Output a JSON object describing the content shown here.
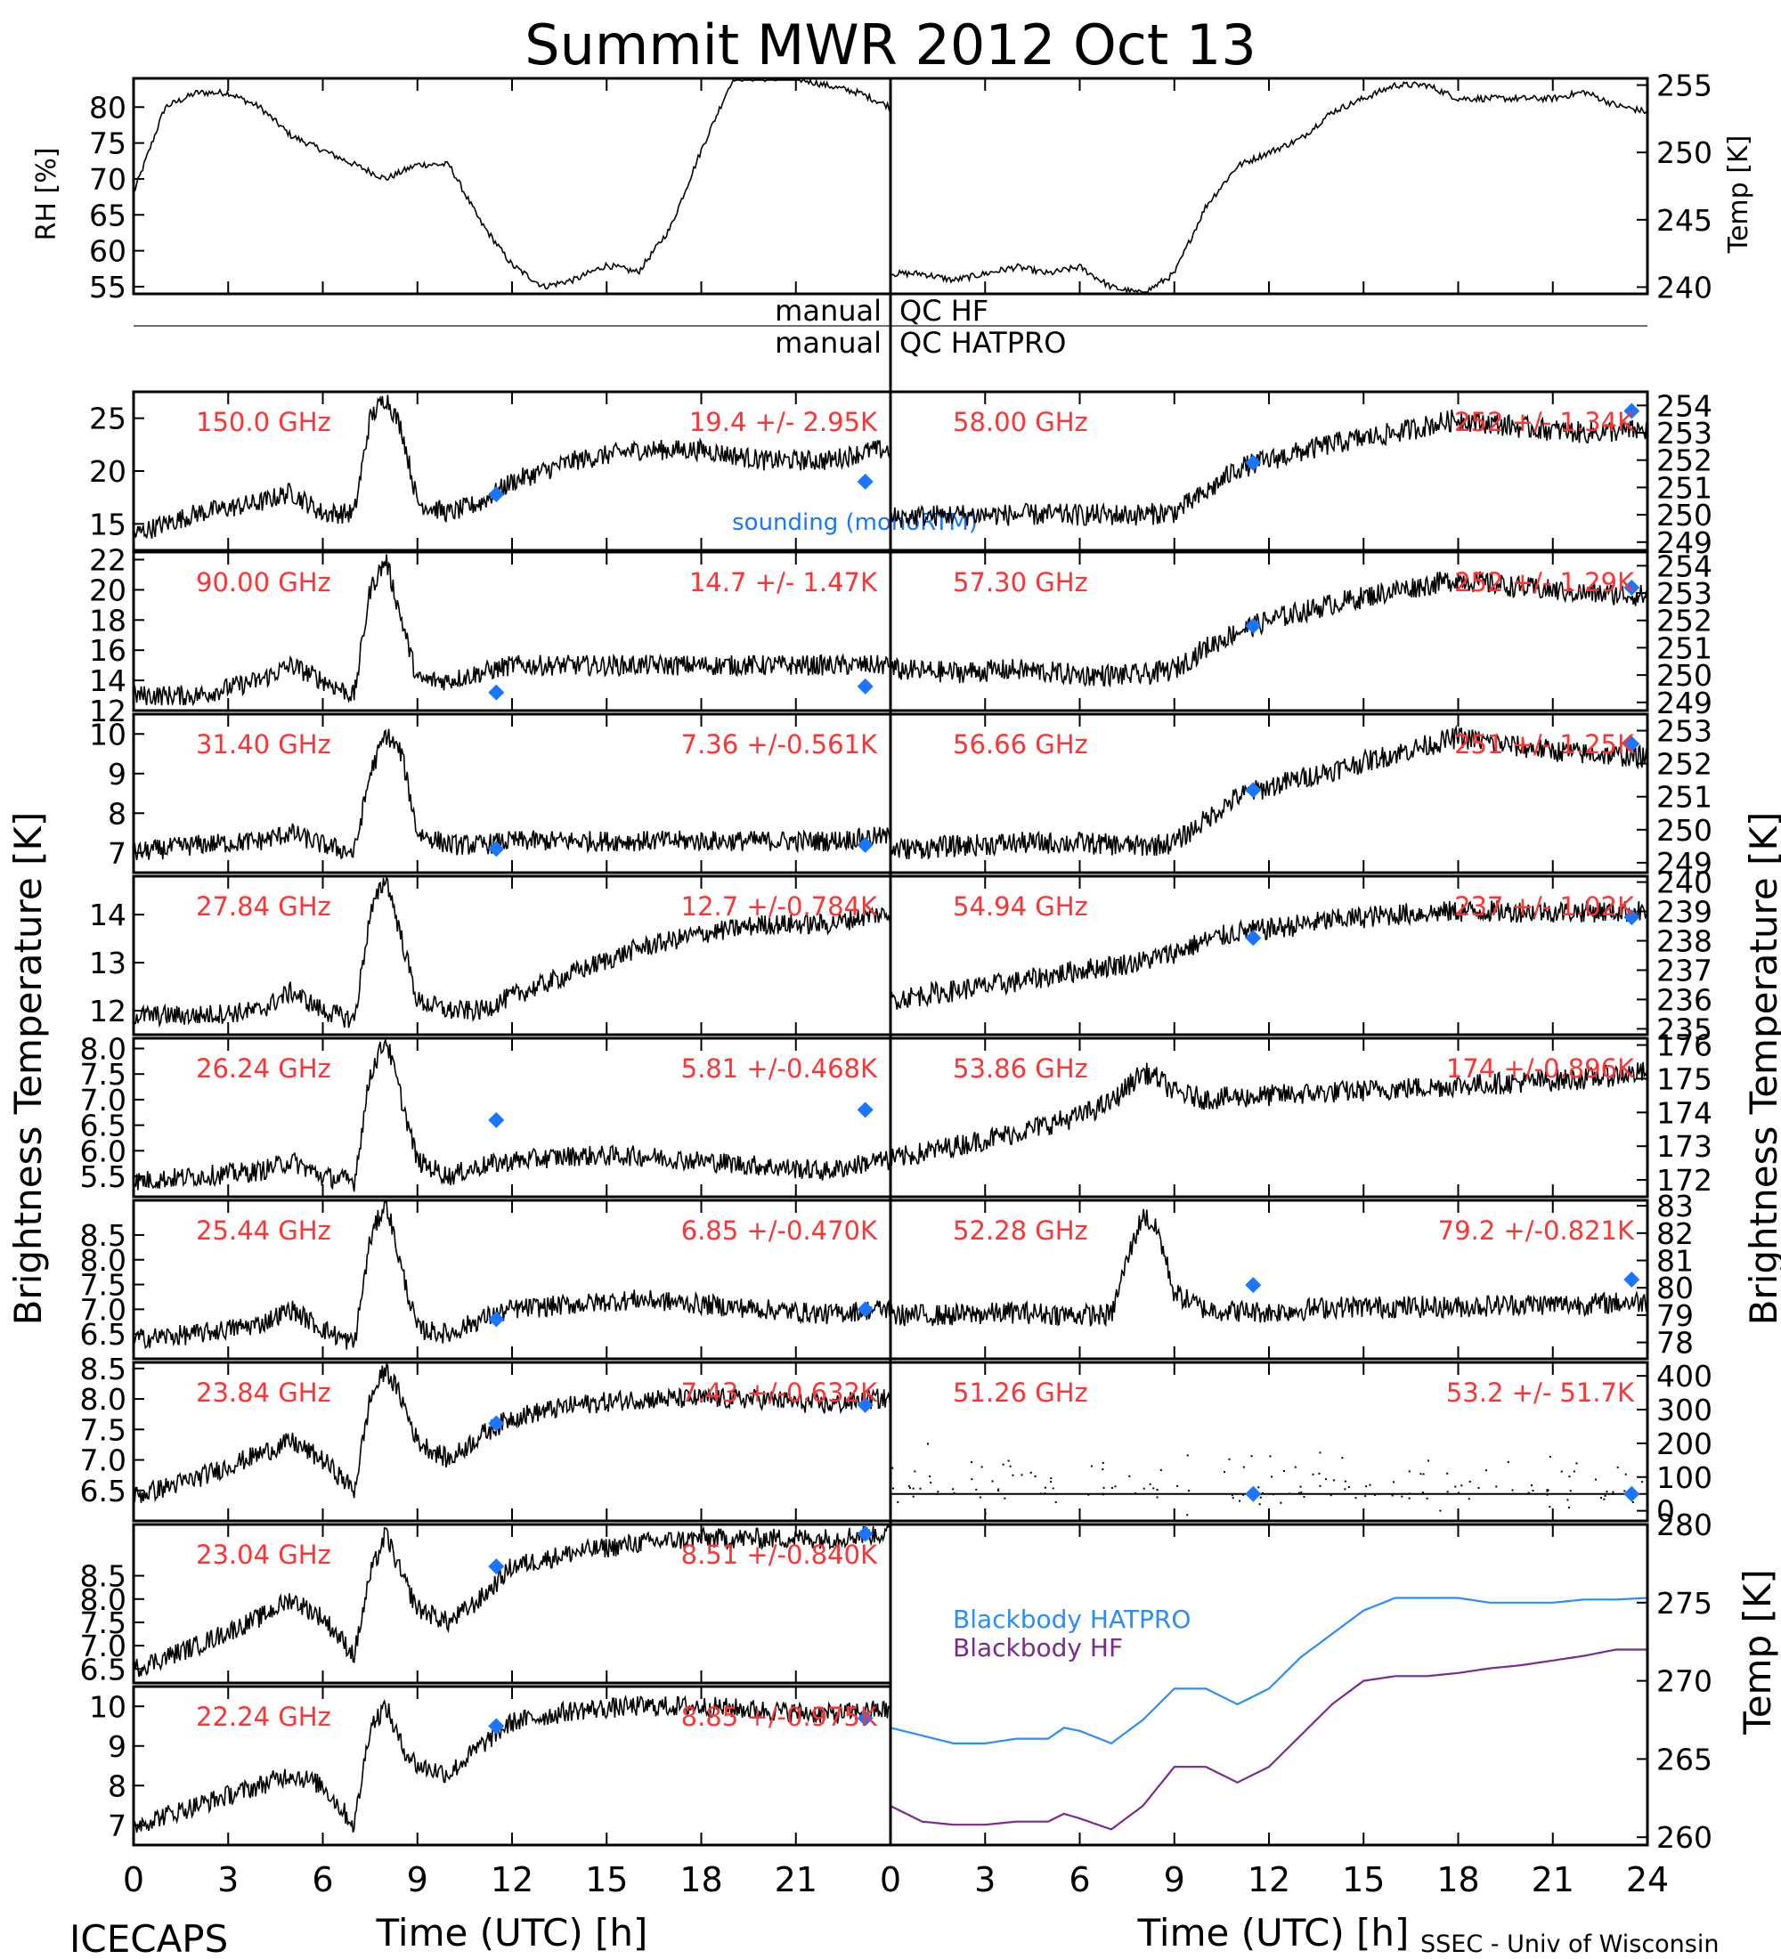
{
  "title": "Summit MWR 2012 Oct 13",
  "footer": {
    "left": "ICECAPS",
    "right": "SSEC - Univ of Wisconsin"
  },
  "axis_labels": {
    "x": "Time (UTC) [h]",
    "left_y": "Brightness Temperature [K]",
    "right_y": "Brightness Temperature [K]",
    "rh": "RH [%]",
    "temp": "Temp [K]",
    "bb_temp": "Temp [K]"
  },
  "qc": {
    "left": "manual",
    "right_top": "QC HF",
    "left2": "manual",
    "right_bottom": "QC HATPRO"
  },
  "sounding_label": "sounding (monoRTM)",
  "colors": {
    "text_red": "#ff3333",
    "marker_blue": "#1a75ff",
    "bb_hatpro": "#2a8cff",
    "bb_hf": "#7b2a8e",
    "trace": "#000000"
  },
  "x_ticks": [
    "0",
    "3",
    "6",
    "9",
    "12",
    "15",
    "18",
    "21",
    "0",
    "3",
    "6",
    "9",
    "12",
    "15",
    "18",
    "21",
    "24"
  ],
  "chart_data": [
    {
      "type": "line",
      "id": "rh",
      "ylabel": "RH [%]",
      "ylim": [
        54,
        84
      ],
      "yticks": [
        "55",
        "60",
        "65",
        "70",
        "75",
        "80"
      ],
      "x": [
        0,
        1,
        2,
        3,
        4,
        5,
        6,
        7,
        8,
        9,
        10,
        11,
        12,
        13,
        14,
        15,
        16,
        17,
        18,
        19,
        20,
        21,
        22,
        23,
        24
      ],
      "values": [
        68,
        80,
        82,
        82,
        80,
        76,
        74,
        72,
        70,
        72,
        72,
        64,
        58,
        55,
        56,
        58,
        57,
        63,
        74,
        84,
        84,
        84,
        83,
        82,
        80
      ]
    },
    {
      "type": "line",
      "id": "temp",
      "ylabel": "Temp [K]",
      "ylim": [
        239.5,
        255.5
      ],
      "yticks": [
        "240",
        "245",
        "250",
        "255"
      ],
      "x": [
        0,
        1,
        2,
        3,
        4,
        5,
        6,
        7,
        8,
        9,
        10,
        11,
        12,
        13,
        14,
        15,
        16,
        17,
        18,
        19,
        20,
        21,
        22,
        23,
        24
      ],
      "values": [
        241,
        241,
        240.5,
        241,
        241.5,
        241,
        241.5,
        240,
        239.5,
        241,
        246,
        249,
        250,
        251,
        253,
        254,
        255,
        255,
        254,
        254,
        254,
        254,
        254.5,
        253.5,
        253
      ]
    },
    {
      "type": "scatter",
      "id": "ch150",
      "label": "150.0 GHz",
      "stat": "19.4 +/- 2.95K",
      "ylim": [
        12.5,
        27.5
      ],
      "yticks": [
        "15",
        "20",
        "25"
      ],
      "x": [
        0,
        2,
        4,
        5,
        6,
        7,
        7.5,
        8,
        8.5,
        9,
        10,
        11,
        12,
        14,
        16,
        18,
        20,
        22,
        23.5
      ],
      "values": [
        14,
        16,
        17,
        18,
        16,
        16,
        25,
        27,
        24,
        17,
        16,
        17,
        19,
        21,
        22,
        22,
        21,
        21,
        22
      ],
      "sounding": [
        [
          11.5,
          17.8
        ],
        [
          23.2,
          19.0
        ]
      ]
    },
    {
      "type": "scatter",
      "id": "ch90",
      "label": "90.00 GHz",
      "stat": "14.7 +/- 1.47K",
      "ylim": [
        12,
        22.5
      ],
      "yticks": [
        "12",
        "14",
        "16",
        "18",
        "20",
        "22"
      ],
      "x": [
        0,
        2,
        4,
        5,
        6,
        7,
        7.5,
        8,
        8.5,
        9,
        10,
        11,
        12,
        14,
        16,
        18,
        20,
        22,
        23.5
      ],
      "values": [
        13,
        13,
        14,
        15,
        14,
        13,
        20,
        22,
        18,
        14,
        14,
        14.5,
        15,
        15,
        15,
        15,
        15,
        15,
        15
      ],
      "sounding": [
        [
          11.5,
          13.2
        ],
        [
          23.2,
          13.6
        ]
      ]
    },
    {
      "type": "scatter",
      "id": "ch31",
      "label": "31.40 GHz",
      "stat": "7.36 +/-0.561K",
      "ylim": [
        6.5,
        10.5
      ],
      "yticks": [
        "7",
        "8",
        "9",
        "10"
      ],
      "x": [
        0,
        2,
        4,
        5,
        6,
        7,
        7.5,
        8,
        8.5,
        9,
        10,
        11,
        12,
        14,
        16,
        18,
        20,
        22,
        23.5
      ],
      "values": [
        7,
        7.2,
        7.3,
        7.5,
        7.2,
        7,
        9,
        10,
        9.5,
        7.5,
        7.2,
        7.2,
        7.3,
        7.3,
        7.3,
        7.3,
        7.3,
        7.3,
        7.4
      ],
      "sounding": [
        [
          11.5,
          7.1
        ],
        [
          23.2,
          7.2
        ]
      ]
    },
    {
      "type": "scatter",
      "id": "ch27",
      "label": "27.84 GHz",
      "stat": "12.7 +/-0.784K",
      "ylim": [
        11.5,
        14.8
      ],
      "yticks": [
        "12",
        "13",
        "14"
      ],
      "x": [
        0,
        2,
        4,
        5,
        6,
        7,
        7.5,
        8,
        8.5,
        9,
        10,
        11,
        12,
        14,
        16,
        18,
        20,
        22,
        23.5
      ],
      "values": [
        11.9,
        11.9,
        12,
        12.4,
        12,
        11.8,
        14,
        14.8,
        13.5,
        12.2,
        12,
        12,
        12.3,
        12.8,
        13.3,
        13.6,
        13.8,
        13.8,
        14
      ],
      "sounding": []
    },
    {
      "type": "scatter",
      "id": "ch26",
      "label": "26.24 GHz",
      "stat": "5.81 +/-0.468K",
      "ylim": [
        5.1,
        8.2
      ],
      "yticks": [
        "8.0",
        "7.5",
        "7.0",
        "6.5",
        "6.0",
        "5.5"
      ],
      "x": [
        0,
        2,
        4,
        5,
        6,
        7,
        7.5,
        8,
        8.5,
        9,
        10,
        11,
        12,
        14,
        16,
        18,
        20,
        22,
        23.5
      ],
      "values": [
        5.4,
        5.5,
        5.6,
        5.8,
        5.5,
        5.4,
        7.5,
        8.2,
        7,
        5.8,
        5.5,
        5.7,
        5.8,
        5.9,
        5.9,
        5.8,
        5.7,
        5.6,
        5.8
      ],
      "sounding": [
        [
          11.5,
          6.6
        ],
        [
          23.2,
          6.8
        ]
      ]
    },
    {
      "type": "scatter",
      "id": "ch25",
      "label": "25.44 GHz",
      "stat": "6.85 +/-0.470K",
      "ylim": [
        6.0,
        9.2
      ],
      "yticks": [
        "8.5",
        "8.0",
        "7.5",
        "7.0",
        "6.5"
      ],
      "x": [
        0,
        2,
        4,
        5,
        6,
        7,
        7.5,
        8,
        8.5,
        9,
        10,
        11,
        12,
        14,
        16,
        18,
        20,
        22,
        23.5
      ],
      "values": [
        6.4,
        6.5,
        6.7,
        7,
        6.6,
        6.3,
        8.4,
        9.2,
        7.8,
        6.6,
        6.5,
        6.8,
        7,
        7.1,
        7.2,
        7.1,
        7,
        6.9,
        7
      ],
      "sounding": [
        [
          11.5,
          6.8
        ],
        [
          23.2,
          7.0
        ]
      ]
    },
    {
      "type": "scatter",
      "id": "ch23_84",
      "label": "23.84 GHz",
      "stat": "7.43 +/-0.632K",
      "ylim": [
        6.0,
        8.6
      ],
      "yticks": [
        "8.5",
        "8.0",
        "7.5",
        "7.0",
        "6.5"
      ],
      "x": [
        0,
        2,
        4,
        5,
        6,
        7,
        7.5,
        8,
        8.5,
        9,
        10,
        11,
        12,
        14,
        16,
        18,
        20,
        22,
        23.5
      ],
      "values": [
        6.4,
        6.7,
        7.1,
        7.3,
        7,
        6.5,
        8,
        8.5,
        8,
        7.3,
        7,
        7.4,
        7.7,
        7.9,
        8,
        8,
        8,
        7.9,
        8
      ],
      "sounding": [
        [
          11.5,
          7.6
        ],
        [
          23.2,
          7.9
        ]
      ]
    },
    {
      "type": "scatter",
      "id": "ch23_04",
      "label": "23.04 GHz",
      "stat": "8.51 +/-0.840K",
      "ylim": [
        6.2,
        9.6
      ],
      "yticks": [
        "8.5",
        "8.0",
        "7.5",
        "7.0",
        "6.5"
      ],
      "x": [
        0,
        2,
        4,
        5,
        6,
        7,
        7.5,
        8,
        8.5,
        9,
        10,
        11,
        12,
        14,
        16,
        18,
        20,
        22,
        23.5
      ],
      "values": [
        6.5,
        7,
        7.6,
        8,
        7.6,
        6.8,
        8.5,
        9.4,
        8.5,
        7.8,
        7.5,
        8,
        8.7,
        9,
        9.2,
        9.3,
        9.3,
        9.3,
        9.4
      ],
      "sounding": [
        [
          11.5,
          8.7
        ],
        [
          23.2,
          9.4
        ]
      ]
    },
    {
      "type": "scatter",
      "id": "ch22",
      "label": "22.24 GHz",
      "stat": "8.85 +/-0.975K",
      "ylim": [
        6.5,
        10.5
      ],
      "yticks": [
        "10",
        "9",
        "8",
        "7"
      ],
      "x": [
        0,
        2,
        4,
        5,
        6,
        7,
        7.5,
        8,
        8.5,
        9,
        10,
        11,
        12,
        14,
        16,
        18,
        20,
        22,
        23.5
      ],
      "values": [
        7,
        7.5,
        8,
        8.3,
        8,
        7,
        9.5,
        10,
        9,
        8.5,
        8.3,
        9,
        9.6,
        9.9,
        10,
        10,
        9.9,
        9.8,
        9.9
      ],
      "sounding": [
        [
          11.5,
          9.5
        ],
        [
          23.2,
          9.7
        ]
      ]
    },
    {
      "type": "scatter",
      "id": "ch58",
      "label": "58.00 GHz",
      "stat": "252 +/- 1.34K",
      "ylim": [
        248.7,
        254.5
      ],
      "yticks": [
        "254",
        "253",
        "252",
        "251",
        "250",
        "249"
      ],
      "x": [
        0,
        2,
        4,
        6,
        8,
        9,
        10,
        11,
        12,
        14,
        16,
        18,
        20,
        22,
        24
      ],
      "values": [
        249.9,
        250,
        250,
        250,
        250,
        250.1,
        250.8,
        251.7,
        252,
        252.6,
        253,
        253.5,
        253.2,
        253,
        253.1
      ],
      "sounding": [
        [
          11.5,
          251.9
        ],
        [
          23.5,
          253.8
        ]
      ]
    },
    {
      "type": "scatter",
      "id": "ch57_30",
      "label": "57.30 GHz",
      "stat": "252 +/- 1.29K",
      "ylim": [
        248.7,
        254.5
      ],
      "yticks": [
        "254",
        "253",
        "252",
        "251",
        "250",
        "249"
      ],
      "x": [
        0,
        2,
        4,
        6,
        8,
        9,
        10,
        11,
        12,
        14,
        16,
        18,
        20,
        22,
        24
      ],
      "values": [
        250.2,
        250.1,
        250.2,
        250,
        250,
        250.2,
        251,
        251.6,
        252,
        252.6,
        253.1,
        253.5,
        253.2,
        253,
        252.9
      ],
      "sounding": [
        [
          11.5,
          251.8
        ],
        [
          23.5,
          253.2
        ]
      ]
    },
    {
      "type": "scatter",
      "id": "ch56",
      "label": "56.66 GHz",
      "stat": "251 +/- 1.25K",
      "ylim": [
        248.7,
        253.5
      ],
      "yticks": [
        "253",
        "252",
        "251",
        "250",
        "249"
      ],
      "x": [
        0,
        2,
        4,
        6,
        8,
        9,
        10,
        11,
        12,
        14,
        16,
        18,
        20,
        22,
        24
      ],
      "values": [
        249.4,
        249.5,
        249.6,
        249.6,
        249.5,
        249.6,
        250.3,
        251,
        251.3,
        251.8,
        252.3,
        252.8,
        252.5,
        252.3,
        252.2
      ],
      "sounding": [
        [
          11.5,
          251.2
        ],
        [
          23.5,
          252.6
        ]
      ]
    },
    {
      "type": "scatter",
      "id": "ch54",
      "label": "54.94 GHz",
      "stat": "237 +/- 1.02K",
      "ylim": [
        234.8,
        240.2
      ],
      "yticks": [
        "240",
        "239",
        "238",
        "237",
        "236",
        "235"
      ],
      "x": [
        0,
        2,
        4,
        6,
        8,
        9,
        10,
        11,
        12,
        14,
        16,
        18,
        20,
        22,
        24
      ],
      "values": [
        236,
        236.3,
        236.6,
        237,
        237.3,
        237.6,
        238,
        238.3,
        238.4,
        238.7,
        238.9,
        239,
        239,
        239,
        239
      ],
      "sounding": [
        [
          11.5,
          238.1
        ],
        [
          23.5,
          238.8
        ]
      ]
    },
    {
      "type": "scatter",
      "id": "ch53",
      "label": "53.86 GHz",
      "stat": "174 +/-0.896K",
      "ylim": [
        171.5,
        176.2
      ],
      "yticks": [
        "176",
        "175",
        "174",
        "173",
        "172"
      ],
      "x": [
        0,
        2,
        4,
        6,
        7,
        8,
        8.5,
        9,
        10,
        12,
        14,
        16,
        18,
        20,
        22,
        24
      ],
      "values": [
        172.6,
        173,
        173.4,
        173.9,
        174.3,
        175.2,
        175,
        174.6,
        174.4,
        174.5,
        174.6,
        174.7,
        174.8,
        174.9,
        175,
        175.2
      ],
      "sounding": []
    },
    {
      "type": "scatter",
      "id": "ch52",
      "label": "52.28 GHz",
      "stat": "79.2 +/-0.821K",
      "ylim": [
        77.4,
        83.2
      ],
      "yticks": [
        "83",
        "82",
        "81",
        "80",
        "79",
        "78"
      ],
      "x": [
        0,
        2,
        4,
        6,
        7,
        7.5,
        8,
        8.5,
        9,
        10,
        12,
        14,
        16,
        18,
        20,
        22,
        24
      ],
      "values": [
        79,
        79,
        79.1,
        79,
        79,
        81,
        82.7,
        82,
        79.8,
        79.2,
        79.1,
        79.3,
        79.3,
        79.3,
        79.4,
        79.4,
        79.5
      ],
      "sounding": [
        [
          11.5,
          80.1
        ],
        [
          23.5,
          80.3
        ]
      ]
    },
    {
      "type": "scatter",
      "id": "ch51",
      "label": "51.26 GHz",
      "stat": "53.2 +/- 51.7K",
      "ylim": [
        -30,
        440
      ],
      "yticks": [
        "400",
        "300",
        "200",
        "100",
        "0"
      ],
      "x": [
        0,
        6,
        12,
        18,
        24
      ],
      "values": [
        50,
        50,
        50,
        50,
        50
      ],
      "sounding": [
        [
          11.5,
          50
        ],
        [
          23.5,
          50
        ]
      ]
    },
    {
      "type": "line",
      "id": "blackbody",
      "ylabel": "Temp [K]",
      "ylim": [
        259.5,
        280
      ],
      "yticks": [
        "280",
        "275",
        "270",
        "265",
        "260"
      ],
      "series": [
        {
          "name": "Blackbody HATPRO",
          "x": [
            0,
            1,
            2,
            3,
            4,
            5,
            5.5,
            6,
            7,
            8,
            9,
            10,
            11,
            12,
            13,
            14,
            15,
            16,
            17,
            18,
            19,
            20,
            21,
            22,
            23,
            24
          ],
          "values": [
            267,
            266.5,
            266,
            266,
            266.3,
            266.3,
            267,
            266.8,
            266,
            267.5,
            269.5,
            269.5,
            268.5,
            269.5,
            271.5,
            273,
            274.5,
            275.3,
            275.3,
            275.3,
            275,
            275,
            275,
            275.2,
            275.2,
            275.3
          ]
        },
        {
          "name": "Blackbody HF",
          "x": [
            0,
            1,
            2,
            3,
            4,
            5,
            5.5,
            6,
            7,
            8,
            9,
            10,
            11,
            12,
            13,
            14,
            15,
            16,
            17,
            18,
            19,
            20,
            21,
            22,
            23,
            24
          ],
          "values": [
            262,
            261,
            260.8,
            260.8,
            261,
            261,
            261.5,
            261.2,
            260.5,
            262,
            264.5,
            264.5,
            263.5,
            264.5,
            266.5,
            268.5,
            270,
            270.3,
            270.3,
            270.5,
            270.8,
            271,
            271.3,
            271.6,
            272,
            272
          ]
        }
      ]
    }
  ]
}
